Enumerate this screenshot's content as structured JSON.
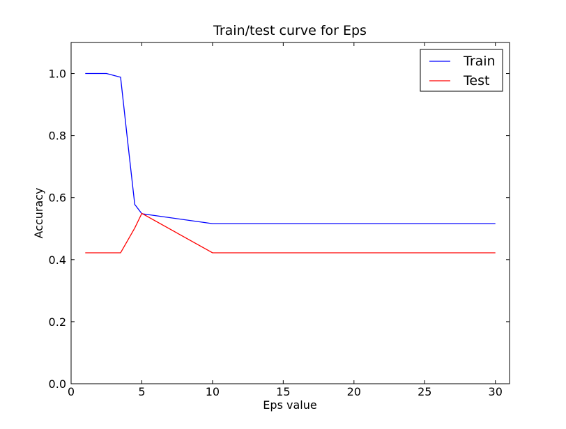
{
  "chart_data": {
    "type": "line",
    "title": "Train/test curve for Eps",
    "xlabel": "Eps value",
    "ylabel": "Accuracy",
    "xlim": [
      0,
      31
    ],
    "ylim": [
      0.0,
      1.1
    ],
    "xticks": [
      0,
      5,
      10,
      15,
      20,
      25,
      30
    ],
    "xtick_labels": [
      "0",
      "5",
      "10",
      "15",
      "20",
      "25",
      "30"
    ],
    "yticks": [
      0.0,
      0.2,
      0.4,
      0.6,
      0.8,
      1.0
    ],
    "ytick_labels": [
      "0.0",
      "0.2",
      "0.4",
      "0.6",
      "0.8",
      "1.0"
    ],
    "grid": false,
    "legend_position": "top-right",
    "series": [
      {
        "name": "Train",
        "color": "#0000ff",
        "x": [
          1,
          2.5,
          3.5,
          4,
          4.5,
          5,
          10,
          30
        ],
        "y": [
          1.0,
          1.0,
          0.988,
          0.78,
          0.578,
          0.548,
          0.516,
          0.516
        ]
      },
      {
        "name": "Test",
        "color": "#ff0000",
        "x": [
          1,
          2.5,
          3.5,
          4,
          4.5,
          5,
          10,
          30
        ],
        "y": [
          0.422,
          0.422,
          0.422,
          0.462,
          0.502,
          0.549,
          0.422,
          0.422
        ]
      }
    ]
  }
}
